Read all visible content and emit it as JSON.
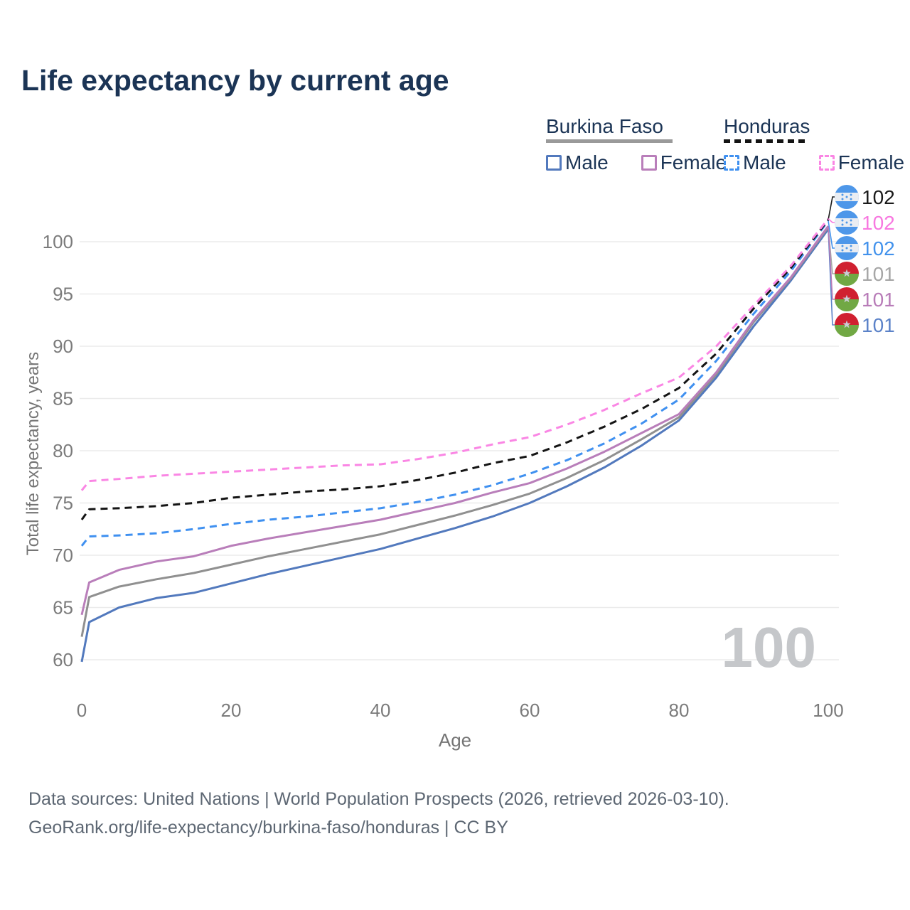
{
  "page": {
    "title": "Life expectancy by current age",
    "watermark": "100",
    "footer_line1": "Data sources: United Nations | World Population Prospects (2026, retrieved 2026-03-10).",
    "footer_line2": "GeoRank.org/life-expectancy/burkina-faso/honduras | CC BY"
  },
  "legend": {
    "groups": [
      {
        "name": "Burkina Faso",
        "line_style": "solid",
        "items": [
          {
            "label": "Male",
            "color": "#5279bd",
            "dashed": false
          },
          {
            "label": "Female",
            "color": "#b97eba",
            "dashed": false
          }
        ]
      },
      {
        "name": "Honduras",
        "line_style": "dashed",
        "items": [
          {
            "label": "Male",
            "color": "#3f90f0",
            "dashed": true
          },
          {
            "label": "Female",
            "color": "#fa86e4",
            "dashed": true
          }
        ]
      }
    ]
  },
  "chart_data": {
    "type": "line",
    "title": "Life expectancy by current age",
    "xlabel": "Age",
    "ylabel": "Total life expectancy, years",
    "xlim": [
      0,
      100
    ],
    "ylim": [
      59,
      103
    ],
    "x_ticks": [
      0,
      20,
      40,
      60,
      80,
      100
    ],
    "y_ticks": [
      60,
      65,
      70,
      75,
      80,
      85,
      90,
      95,
      100
    ],
    "grid": "horizontal",
    "legend_position": "top-right",
    "x": [
      0,
      1,
      5,
      10,
      15,
      20,
      25,
      30,
      35,
      40,
      45,
      50,
      55,
      60,
      65,
      70,
      75,
      80,
      85,
      90,
      95,
      100
    ],
    "series": [
      {
        "name": "Burkina Faso Male",
        "country": "Burkina Faso",
        "sex": "Male",
        "color": "#5279bd",
        "dash": false,
        "flag": "burkina-faso",
        "end_label": "101",
        "end_label_color": "#5b82c8",
        "label_row": 5,
        "values": [
          59.8,
          63.6,
          65.0,
          65.9,
          66.4,
          67.3,
          68.2,
          69.0,
          69.8,
          70.6,
          71.6,
          72.6,
          73.7,
          75.0,
          76.6,
          78.4,
          80.5,
          82.9,
          87.0,
          91.9,
          96.3,
          101.2
        ]
      },
      {
        "name": "Burkina Faso Both sexes",
        "country": "Burkina Faso",
        "sex": "Both",
        "color": "#909090",
        "dash": false,
        "flag": "burkina-faso",
        "end_label": "101",
        "end_label_color": "#a6a6a6",
        "label_row": 3,
        "values": [
          62.2,
          66.0,
          67.0,
          67.7,
          68.3,
          69.1,
          69.9,
          70.6,
          71.3,
          72.0,
          72.9,
          73.8,
          74.8,
          75.9,
          77.4,
          79.1,
          81.1,
          83.2,
          87.3,
          92.3,
          96.5,
          101.4
        ]
      },
      {
        "name": "Burkina Faso Female",
        "country": "Burkina Faso",
        "sex": "Female",
        "color": "#b97eba",
        "dash": false,
        "flag": "burkina-faso",
        "end_label": "101",
        "end_label_color": "#b87cb8",
        "label_row": 4,
        "values": [
          64.3,
          67.4,
          68.6,
          69.4,
          69.9,
          70.9,
          71.6,
          72.2,
          72.8,
          73.4,
          74.2,
          75.0,
          76.0,
          76.9,
          78.3,
          79.9,
          81.7,
          83.5,
          87.5,
          92.5,
          96.6,
          101.5
        ]
      },
      {
        "name": "Honduras Male",
        "country": "Honduras",
        "sex": "Male",
        "color": "#3f90f0",
        "dash": true,
        "flag": "honduras",
        "end_label": "102",
        "end_label_color": "#4292ec",
        "label_row": 2,
        "values": [
          70.9,
          71.8,
          71.9,
          72.1,
          72.5,
          73.0,
          73.4,
          73.7,
          74.1,
          74.5,
          75.1,
          75.8,
          76.7,
          77.8,
          79.1,
          80.7,
          82.6,
          84.9,
          88.6,
          93.1,
          97.2,
          102.0
        ]
      },
      {
        "name": "Honduras Both sexes",
        "country": "Honduras",
        "sex": "Both",
        "color": "#141414",
        "dash": true,
        "flag": "honduras",
        "end_label": "102",
        "end_label_color": "#1a1a1a",
        "label_row": 0,
        "values": [
          73.4,
          74.4,
          74.5,
          74.7,
          75.0,
          75.5,
          75.8,
          76.1,
          76.3,
          76.6,
          77.2,
          77.9,
          78.8,
          79.5,
          80.8,
          82.3,
          84.0,
          86.0,
          89.3,
          93.6,
          97.5,
          102.1
        ]
      },
      {
        "name": "Honduras Female",
        "country": "Honduras",
        "sex": "Female",
        "color": "#fa86e4",
        "dash": true,
        "flag": "honduras",
        "end_label": "102",
        "end_label_color": "#f878e0",
        "label_row": 1,
        "values": [
          76.2,
          77.1,
          77.3,
          77.6,
          77.8,
          78.0,
          78.2,
          78.4,
          78.6,
          78.7,
          79.2,
          79.8,
          80.6,
          81.3,
          82.5,
          83.9,
          85.5,
          87.0,
          90.0,
          93.9,
          97.7,
          102.2
        ]
      }
    ]
  }
}
